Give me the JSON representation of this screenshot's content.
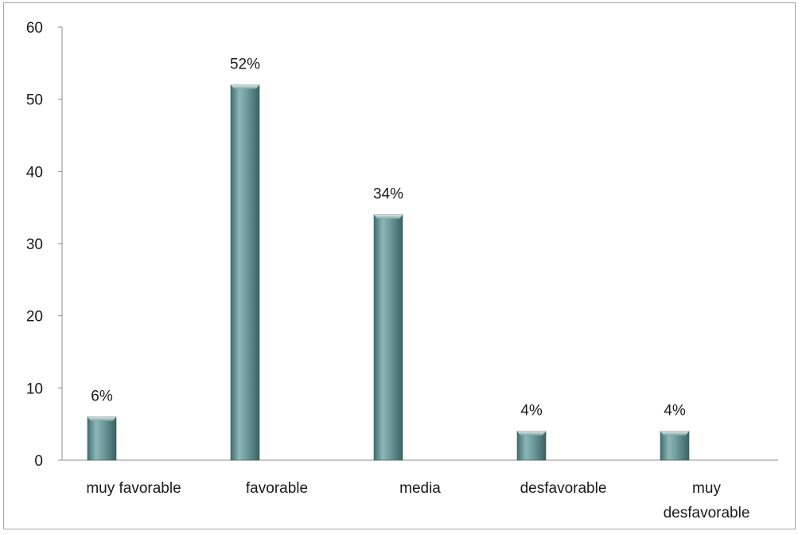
{
  "chart_data": {
    "type": "bar",
    "categories": [
      [
        "muy favorable"
      ],
      [
        "favorable"
      ],
      [
        "media"
      ],
      [
        "desfavorable"
      ],
      [
        "muy",
        "desfavorable"
      ]
    ],
    "values": [
      6,
      52,
      34,
      4,
      4
    ],
    "data_labels": [
      "6%",
      "52%",
      "34%",
      "4%",
      "4%"
    ],
    "y_ticks": [
      "0",
      "10",
      "20",
      "30",
      "40",
      "50",
      "60"
    ],
    "ylim": [
      0,
      60
    ],
    "grid": false,
    "legend": "none",
    "bar_color": "#5f8f8f"
  }
}
